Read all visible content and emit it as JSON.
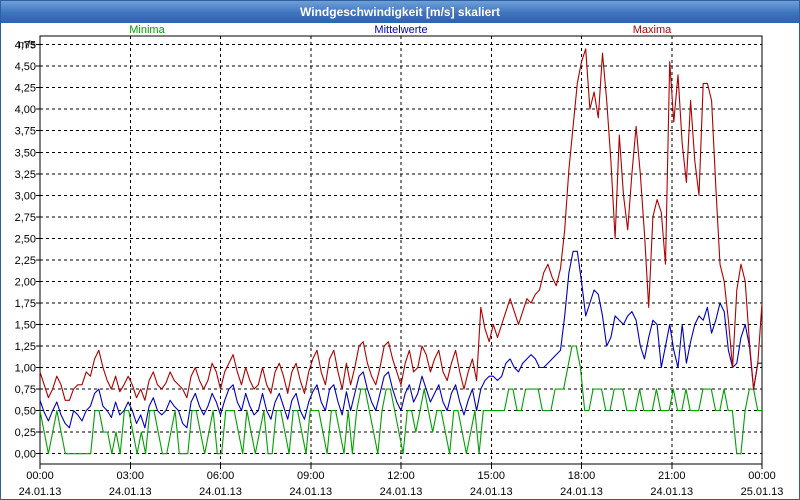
{
  "window": {
    "title": "Windgeschwindigkeit [m/s] skaliert"
  },
  "colors": {
    "minima": "#00a000",
    "mittel": "#0000c0",
    "maxima": "#b00000",
    "axis": "#000000",
    "grid": "#000000"
  },
  "chart_data": {
    "type": "line",
    "title": "Windgeschwindigkeit [m/s] skaliert",
    "ylabel": "m/s",
    "ylim": [
      -0.12,
      4.85
    ],
    "y_ticks": [
      "0,00",
      "0,25",
      "0,50",
      "0,75",
      "1,00",
      "1,25",
      "1,50",
      "1,75",
      "2,00",
      "2,25",
      "2,50",
      "2,75",
      "3,00",
      "3,25",
      "3,50",
      "3,75",
      "4,00",
      "4,25",
      "4,50",
      "4,75"
    ],
    "x_ticks": [
      {
        "time": "00:00",
        "date": "24.01.13"
      },
      {
        "time": "03:00",
        "date": "24.01.13"
      },
      {
        "time": "06:00",
        "date": "24.01.13"
      },
      {
        "time": "09:00",
        "date": "24.01.13"
      },
      {
        "time": "12:00",
        "date": "24.01.13"
      },
      {
        "time": "15:00",
        "date": "24.01.13"
      },
      {
        "time": "18:00",
        "date": "24.01.13"
      },
      {
        "time": "21:00",
        "date": "24.01.13"
      },
      {
        "time": "00:00",
        "date": "25.01.13"
      }
    ],
    "x_range_hours": [
      0,
      24
    ],
    "grid": true,
    "series": [
      {
        "name": "Minima",
        "color": "#00a000",
        "values": [
          0.5,
          0.25,
          0.0,
          0.25,
          0.5,
          0.25,
          0.0,
          0.0,
          0.0,
          0.0,
          0.0,
          0.0,
          0.0,
          0.5,
          0.5,
          0.25,
          0.25,
          0.0,
          0.25,
          0.0,
          0.5,
          0.5,
          0.25,
          0.0,
          0.25,
          0.0,
          0.5,
          0.5,
          0.25,
          0.0,
          0.0,
          0.25,
          0.5,
          0.0,
          0.0,
          0.0,
          0.5,
          0.5,
          0.25,
          0.0,
          0.25,
          0.5,
          0.0,
          0.0,
          0.5,
          0.5,
          0.5,
          0.25,
          0.0,
          0.5,
          0.25,
          0.0,
          0.25,
          0.5,
          0.0,
          0.0,
          0.5,
          0.5,
          0.25,
          0.0,
          0.5,
          0.5,
          0.25,
          0.0,
          0.5,
          0.5,
          0.5,
          0.25,
          0.0,
          0.5,
          0.5,
          0.25,
          0.0,
          0.5,
          0.0,
          0.5,
          0.75,
          0.75,
          0.5,
          0.25,
          0.0,
          0.5,
          0.75,
          0.75,
          0.5,
          0.25,
          0.0,
          0.5,
          0.5,
          0.25,
          0.5,
          0.75,
          0.5,
          0.25,
          0.5,
          0.5,
          0.25,
          0.0,
          0.5,
          0.5,
          0.25,
          0.0,
          0.25,
          0.5,
          0.0,
          0.5,
          0.5,
          0.5,
          0.5,
          0.5,
          0.5,
          0.75,
          0.75,
          0.5,
          0.5,
          0.75,
          0.75,
          0.75,
          0.75,
          0.5,
          0.5,
          0.5,
          0.75,
          0.75,
          0.75,
          1.0,
          1.25,
          1.25,
          1.0,
          0.5,
          0.5,
          0.75,
          0.75,
          0.75,
          0.5,
          0.5,
          0.75,
          0.75,
          0.75,
          0.5,
          0.5,
          0.5,
          0.75,
          0.5,
          0.5,
          0.5,
          0.75,
          0.5,
          0.5,
          0.5,
          0.75,
          0.5,
          0.5,
          0.75,
          0.5,
          0.5,
          0.5,
          0.75,
          0.75,
          0.75,
          0.5,
          0.5,
          0.75,
          0.5,
          0.5,
          0.0,
          0.0,
          0.5,
          0.75,
          0.75,
          0.5,
          0.5
        ]
      },
      {
        "name": "Mittelwerte",
        "color": "#0000c0",
        "values": [
          0.62,
          0.48,
          0.38,
          0.5,
          0.6,
          0.45,
          0.35,
          0.3,
          0.5,
          0.45,
          0.38,
          0.5,
          0.55,
          0.7,
          0.75,
          0.55,
          0.5,
          0.42,
          0.6,
          0.45,
          0.5,
          0.6,
          0.5,
          0.35,
          0.45,
          0.3,
          0.55,
          0.65,
          0.5,
          0.45,
          0.5,
          0.62,
          0.55,
          0.5,
          0.35,
          0.3,
          0.6,
          0.7,
          0.55,
          0.45,
          0.55,
          0.7,
          0.6,
          0.45,
          0.62,
          0.75,
          0.8,
          0.6,
          0.5,
          0.7,
          0.55,
          0.45,
          0.5,
          0.7,
          0.5,
          0.4,
          0.6,
          0.7,
          0.55,
          0.4,
          0.62,
          0.7,
          0.5,
          0.4,
          0.6,
          0.72,
          0.8,
          0.6,
          0.5,
          0.75,
          0.8,
          0.6,
          0.45,
          0.72,
          0.5,
          0.7,
          0.9,
          0.95,
          0.75,
          0.6,
          0.5,
          0.7,
          0.9,
          0.95,
          0.75,
          0.6,
          0.5,
          0.7,
          0.8,
          0.6,
          0.7,
          0.9,
          0.75,
          0.6,
          0.7,
          0.8,
          0.6,
          0.5,
          0.7,
          0.8,
          0.6,
          0.45,
          0.62,
          0.75,
          0.5,
          0.75,
          0.85,
          0.9,
          0.9,
          0.85,
          0.9,
          1.05,
          1.1,
          1.0,
          0.95,
          1.05,
          1.1,
          1.15,
          1.1,
          1.0,
          1.0,
          1.05,
          1.1,
          1.15,
          1.2,
          1.6,
          2.1,
          2.35,
          2.35,
          2.0,
          1.6,
          1.75,
          1.9,
          1.85,
          1.6,
          1.25,
          1.35,
          1.6,
          1.55,
          1.5,
          1.6,
          1.65,
          1.55,
          1.25,
          1.1,
          1.35,
          1.55,
          1.5,
          1.0,
          1.25,
          1.5,
          1.2,
          1.0,
          1.5,
          1.05,
          1.3,
          1.5,
          1.6,
          1.55,
          1.7,
          1.4,
          1.55,
          1.75,
          1.65,
          1.2,
          1.0,
          1.05,
          1.35,
          1.5,
          1.25,
          0.75,
          1.05,
          1.05
        ]
      },
      {
        "name": "Maxima",
        "color": "#b00000",
        "values": [
          0.95,
          0.8,
          0.65,
          0.75,
          0.9,
          0.8,
          0.62,
          0.62,
          0.75,
          0.8,
          0.8,
          0.95,
          0.9,
          1.1,
          1.2,
          1.0,
          0.85,
          0.75,
          0.9,
          0.72,
          0.8,
          0.9,
          0.8,
          0.65,
          0.75,
          0.62,
          0.85,
          0.95,
          0.8,
          0.75,
          0.82,
          0.95,
          0.85,
          0.8,
          0.75,
          0.65,
          0.9,
          1.0,
          0.85,
          0.75,
          0.85,
          1.05,
          0.95,
          0.75,
          0.95,
          1.05,
          1.15,
          0.95,
          0.8,
          1.0,
          0.85,
          0.75,
          0.8,
          1.0,
          0.8,
          0.7,
          0.95,
          1.05,
          0.9,
          0.7,
          0.95,
          1.05,
          0.85,
          0.7,
          0.95,
          1.1,
          1.2,
          0.95,
          0.8,
          1.1,
          1.2,
          0.95,
          0.75,
          1.05,
          0.8,
          1.0,
          1.25,
          1.3,
          1.05,
          0.9,
          0.8,
          1.0,
          1.25,
          1.3,
          1.1,
          0.95,
          0.8,
          1.05,
          1.2,
          0.95,
          1.0,
          1.25,
          1.15,
          0.95,
          1.1,
          1.2,
          0.95,
          0.85,
          1.05,
          1.2,
          0.95,
          0.75,
          0.95,
          1.1,
          0.85,
          1.7,
          1.45,
          1.3,
          1.5,
          1.35,
          1.5,
          1.65,
          1.8,
          1.65,
          1.5,
          1.65,
          1.8,
          1.75,
          1.85,
          1.9,
          2.1,
          2.2,
          2.05,
          1.95,
          2.15,
          2.6,
          3.3,
          3.8,
          4.3,
          4.55,
          4.7,
          4.0,
          4.2,
          3.9,
          4.65,
          4.1,
          3.4,
          2.5,
          3.7,
          3.0,
          2.6,
          3.25,
          3.8,
          3.25,
          2.55,
          1.7,
          2.75,
          2.95,
          2.8,
          2.2,
          4.55,
          3.85,
          4.4,
          3.6,
          3.15,
          4.1,
          3.4,
          3.0,
          4.3,
          4.3,
          4.1,
          3.1,
          2.2,
          2.0,
          1.55,
          1.0,
          1.9,
          2.2,
          2.0,
          1.3,
          0.75,
          1.05,
          1.75
        ]
      }
    ]
  }
}
